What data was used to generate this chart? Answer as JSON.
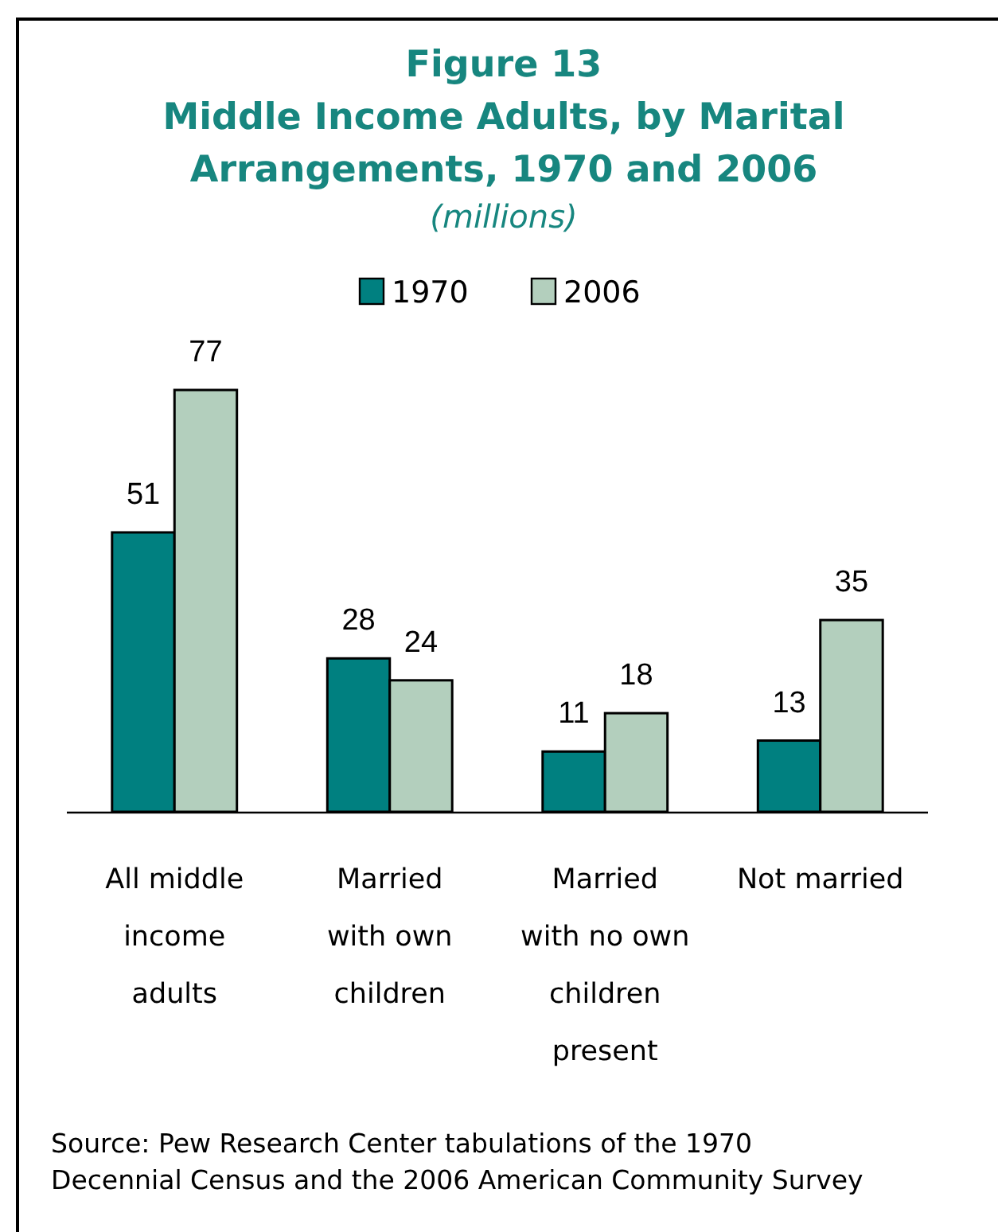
{
  "chart_data": {
    "type": "bar",
    "title": "Figure 13\nMiddle Income Adults, by Marital\nArrangements, 1970 and 2006",
    "subtitle": "(millions)",
    "categories": [
      "All middle\nincome\nadults",
      "Married\nwith own\nchildren",
      "Married\nwith no own\nchildren\npresent",
      "Not married"
    ],
    "series": [
      {
        "name": "1970",
        "color": "#008080",
        "values": [
          51,
          28,
          11,
          13
        ]
      },
      {
        "name": "2006",
        "color": "#b3cfbd",
        "values": [
          77,
          24,
          18,
          35
        ]
      }
    ],
    "data_labels": true,
    "legend": "top",
    "annotations": [
      "Source: Pew Research Center tabulations of the 1970\nDecennial Census and the 2006 American Community Survey"
    ]
  }
}
